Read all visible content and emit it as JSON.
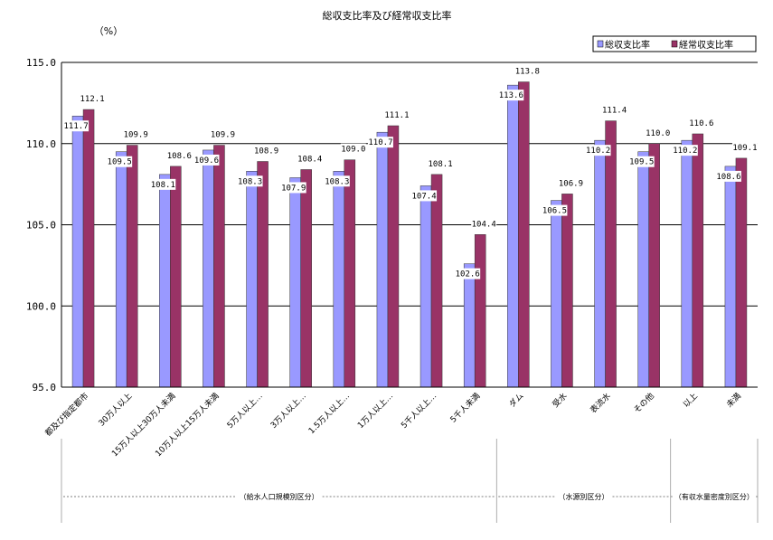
{
  "chart_data": {
    "type": "bar",
    "title": "総収支比率及び経常収支比率",
    "unit_label": "（%）",
    "ylim": [
      95.0,
      115.0
    ],
    "yticks": [
      "115.0",
      "110.0",
      "105.0",
      "100.0",
      "95.0"
    ],
    "ytick_values": [
      115,
      110,
      105,
      100,
      95
    ],
    "grid": true,
    "legend_position": "top-right",
    "categories": [
      "都及び指定都市",
      "30万人以上",
      "15万人以上30万人未満",
      "10万人以上15万人未満",
      "5万人以上…",
      "3万人以上…",
      "1.5万人以上…",
      "1万人以上…",
      "5千人以上…",
      "5千人未満",
      "ダム",
      "受水",
      "表流水",
      "その他",
      "以上",
      "未満"
    ],
    "series": [
      {
        "name": "総収支比率",
        "color": "#9999ff",
        "values": [
          111.7,
          109.5,
          108.1,
          109.6,
          108.3,
          107.9,
          108.3,
          110.7,
          107.4,
          102.6,
          113.6,
          106.5,
          110.2,
          109.5,
          110.2,
          108.6
        ],
        "labels": [
          "111.7",
          "109.5",
          "108.1",
          "109.6",
          "108.3",
          "107.9",
          "108.3",
          "110.7",
          "107.4",
          "102.6",
          "113.6",
          "106.5",
          "110.2",
          "109.5",
          "110.2",
          "108.6"
        ]
      },
      {
        "name": "経常収支比率",
        "color": "#993366",
        "values": [
          112.1,
          109.9,
          108.6,
          109.9,
          108.9,
          108.4,
          109.0,
          111.1,
          108.1,
          104.4,
          113.8,
          106.9,
          111.4,
          110.0,
          110.6,
          109.1
        ],
        "labels": [
          "112.1",
          "109.9",
          "108.6",
          "109.9",
          "108.9",
          "108.4",
          "109.0",
          "111.1",
          "108.1",
          "104.4",
          "113.8",
          "106.9",
          "111.4",
          "110.0",
          "110.6",
          "109.1"
        ]
      }
    ],
    "groups": [
      {
        "label": "（給水人口規模別区分）",
        "start": 0,
        "end": 9
      },
      {
        "label": "（水源別区分）",
        "start": 10,
        "end": 13
      },
      {
        "label": "（有収水量密度別区分）",
        "start": 14,
        "end": 15
      }
    ]
  }
}
